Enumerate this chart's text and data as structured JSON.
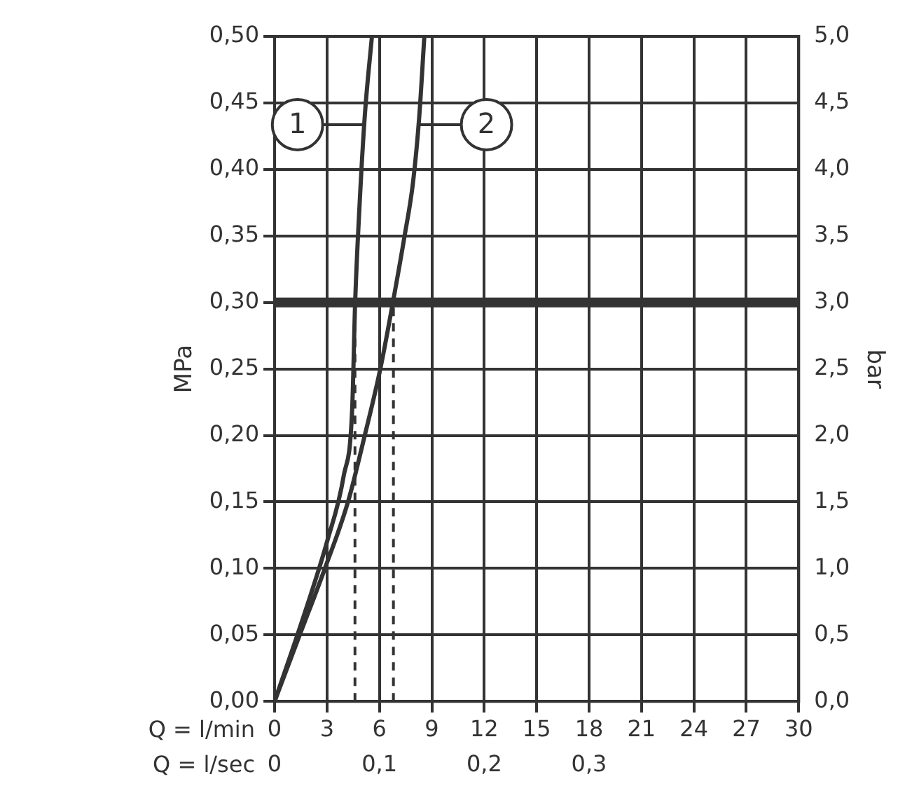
{
  "chart_data": {
    "type": "line",
    "xlabel": "Q = l/min",
    "x2label": "Q = l/sec",
    "ylabel": "MPa",
    "y2label": "bar",
    "xlim": [
      0,
      30
    ],
    "xticks": [
      0,
      3,
      6,
      9,
      12,
      15,
      18,
      21,
      24,
      27,
      30
    ],
    "x2lim": [
      0,
      0.5
    ],
    "x2ticks": [
      {
        "value": 0,
        "label": "0"
      },
      {
        "value": 0.1,
        "label": "0,1"
      },
      {
        "value": 0.2,
        "label": "0,2"
      },
      {
        "value": 0.3,
        "label": "0,3"
      }
    ],
    "ylim": [
      0,
      0.5
    ],
    "yticks": [
      {
        "value": 0,
        "label": "0,00"
      },
      {
        "value": 0.05,
        "label": "0,05"
      },
      {
        "value": 0.1,
        "label": "0,10"
      },
      {
        "value": 0.15,
        "label": "0,15"
      },
      {
        "value": 0.2,
        "label": "0,20"
      },
      {
        "value": 0.25,
        "label": "0,25"
      },
      {
        "value": 0.3,
        "label": "0,30"
      },
      {
        "value": 0.35,
        "label": "0,35"
      },
      {
        "value": 0.4,
        "label": "0,40"
      },
      {
        "value": 0.45,
        "label": "0,45"
      },
      {
        "value": 0.5,
        "label": "0,50"
      }
    ],
    "y2lim": [
      0,
      5
    ],
    "y2ticks": [
      {
        "value": 0,
        "label": "0,0"
      },
      {
        "value": 0.5,
        "label": "0,5"
      },
      {
        "value": 1,
        "label": "1,0"
      },
      {
        "value": 1.5,
        "label": "1,5"
      },
      {
        "value": 2,
        "label": "2,0"
      },
      {
        "value": 2.5,
        "label": "2,5"
      },
      {
        "value": 3,
        "label": "3,0"
      },
      {
        "value": 3.5,
        "label": "3,5"
      },
      {
        "value": 4,
        "label": "4,0"
      },
      {
        "value": 4.5,
        "label": "4,5"
      },
      {
        "value": 5,
        "label": "5,0"
      }
    ],
    "series": [
      {
        "name": "1",
        "color": "#333333",
        "x": [
          0,
          1.56,
          3.0,
          3.96,
          4.44,
          4.61,
          4.85,
          5.16,
          5.57
        ],
        "values": [
          0,
          0.06,
          0.12,
          0.17,
          0.22,
          0.3,
          0.37,
          0.44,
          0.5
        ]
      },
      {
        "name": "2",
        "color": "#333333",
        "x": [
          0,
          1.44,
          2.88,
          4.2,
          5.16,
          6.05,
          6.77,
          7.44,
          7.92,
          8.28,
          8.57
        ],
        "values": [
          0,
          0.05,
          0.1,
          0.15,
          0.2,
          0.25,
          0.3,
          0.35,
          0.39,
          0.44,
          0.5
        ]
      }
    ],
    "ref_lines": [
      {
        "axis": "y",
        "value": 0.3,
        "color": "#333333",
        "line_style": "solid"
      },
      {
        "axis": "x",
        "value": 4.6,
        "color": "#333333",
        "line_style": "dashed"
      },
      {
        "axis": "x",
        "value": 6.8,
        "color": "#333333",
        "line_style": "dashed"
      }
    ],
    "grid": true,
    "legend": "top left",
    "marker": "none",
    "line_style": "solid"
  }
}
